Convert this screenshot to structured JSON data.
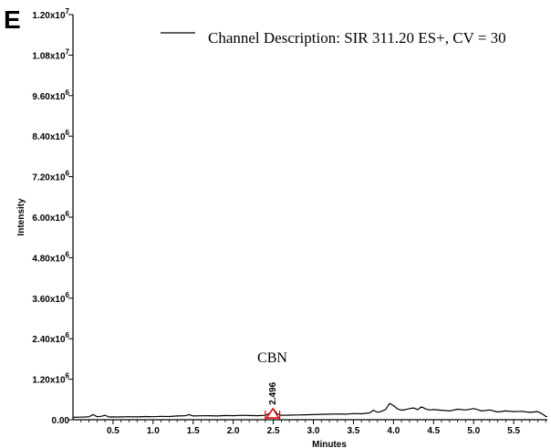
{
  "panel_label": "E",
  "chart_data": {
    "type": "line",
    "title": "",
    "xlabel": "Minutes",
    "ylabel": "Intensity",
    "xlim": [
      0.0,
      5.92
    ],
    "ylim": [
      0,
      12000000
    ],
    "x_ticks": [
      0.5,
      1.0,
      1.5,
      2.0,
      2.5,
      3.0,
      3.5,
      4.0,
      4.5,
      5.0,
      5.5
    ],
    "x_tick_labels": [
      "0.5",
      "1.0",
      "1.5",
      "2.0",
      "2.5",
      "3.0",
      "3.5",
      "4.0",
      "4.5",
      "5.0",
      "5.5"
    ],
    "y_ticks": [
      {
        "value": 0,
        "mantissa": "0.00",
        "exp": ""
      },
      {
        "value": 1200000,
        "mantissa": "1.20x10",
        "exp": "6"
      },
      {
        "value": 2400000,
        "mantissa": "2.40x10",
        "exp": "6"
      },
      {
        "value": 3600000,
        "mantissa": "3.60x10",
        "exp": "6"
      },
      {
        "value": 4800000,
        "mantissa": "4.80x10",
        "exp": "6"
      },
      {
        "value": 6000000,
        "mantissa": "6.00x10",
        "exp": "6"
      },
      {
        "value": 7200000,
        "mantissa": "7.20x10",
        "exp": "6"
      },
      {
        "value": 8400000,
        "mantissa": "8.40x10",
        "exp": "6"
      },
      {
        "value": 9600000,
        "mantissa": "9.60x10",
        "exp": "6"
      },
      {
        "value": 10800000,
        "mantissa": "1.08x10",
        "exp": "7"
      },
      {
        "value": 12000000,
        "mantissa": "1.20x10",
        "exp": "7"
      }
    ],
    "grid": false,
    "legend_position": "top-right",
    "series": [
      {
        "name": "Channel Description: SIR 311.20 ES+, CV = 30",
        "color": "#000000",
        "x": [
          0.0,
          0.08,
          0.15,
          0.2,
          0.25,
          0.3,
          0.35,
          0.4,
          0.45,
          0.5,
          0.55,
          0.6,
          0.7,
          0.8,
          0.9,
          1.0,
          1.1,
          1.2,
          1.3,
          1.4,
          1.45,
          1.5,
          1.6,
          1.7,
          1.8,
          1.9,
          2.0,
          2.1,
          2.2,
          2.3,
          2.4,
          2.45,
          2.496,
          2.55,
          2.6,
          2.7,
          2.8,
          2.9,
          3.0,
          3.1,
          3.2,
          3.3,
          3.4,
          3.5,
          3.6,
          3.7,
          3.75,
          3.8,
          3.85,
          3.9,
          3.95,
          4.0,
          4.05,
          4.1,
          4.15,
          4.2,
          4.25,
          4.3,
          4.35,
          4.4,
          4.45,
          4.5,
          4.6,
          4.7,
          4.8,
          4.9,
          5.0,
          5.05,
          5.1,
          5.2,
          5.3,
          5.4,
          5.5,
          5.6,
          5.7,
          5.8,
          5.85,
          5.9,
          5.92
        ],
        "y": [
          70000,
          75000,
          80000,
          90000,
          150000,
          90000,
          100000,
          130000,
          80000,
          85000,
          80000,
          85000,
          90000,
          85000,
          95000,
          90000,
          100000,
          95000,
          110000,
          120000,
          150000,
          110000,
          115000,
          120000,
          110000,
          125000,
          120000,
          130000,
          125000,
          120000,
          130000,
          180000,
          330000,
          170000,
          130000,
          135000,
          140000,
          145000,
          150000,
          160000,
          165000,
          170000,
          165000,
          180000,
          175000,
          200000,
          280000,
          220000,
          250000,
          300000,
          480000,
          420000,
          320000,
          280000,
          300000,
          330000,
          350000,
          300000,
          380000,
          320000,
          290000,
          300000,
          280000,
          260000,
          310000,
          290000,
          330000,
          300000,
          260000,
          290000,
          230000,
          260000,
          240000,
          250000,
          220000,
          240000,
          180000,
          100000,
          90000
        ]
      }
    ],
    "annotations": [
      {
        "text": "CBN",
        "x": 2.3,
        "y": 1700000
      },
      {
        "text": "2.496",
        "x": 2.496,
        "y": 330000
      }
    ],
    "peak": {
      "x": 2.496,
      "y": 330000,
      "start": 2.4,
      "end": 2.58,
      "color": "#e00000"
    }
  }
}
